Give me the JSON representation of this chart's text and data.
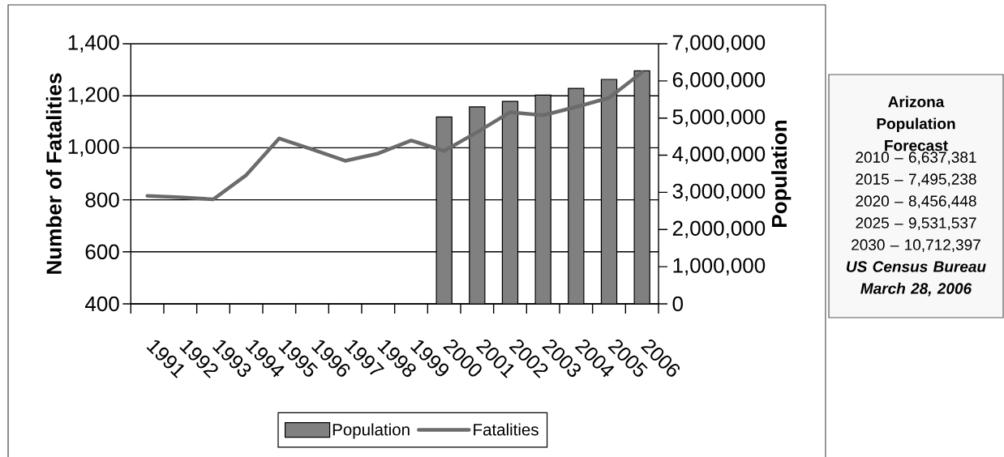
{
  "chart_data": {
    "type": "bar",
    "categories": [
      "1991",
      "1992",
      "1993",
      "1994",
      "1995",
      "1996",
      "1997",
      "1998",
      "1999",
      "2000",
      "2001",
      "2002",
      "2003",
      "2004",
      "2005",
      "2006"
    ],
    "series": [
      {
        "name": "Population",
        "axis": "y2",
        "color": "#808080",
        "values": [
          null,
          null,
          null,
          null,
          null,
          null,
          null,
          null,
          null,
          5030000,
          5300000,
          5450000,
          5620000,
          5800000,
          6040000,
          6270000
        ]
      },
      {
        "name": "Fatalities",
        "type": "line",
        "color": "#6b6b6b",
        "values": [
          815,
          810,
          802,
          895,
          1036,
          994,
          950,
          978,
          1028,
          988,
          1060,
          1137,
          1125,
          1157,
          1192,
          1290
        ]
      }
    ],
    "ylabel": "Number of Fatalities",
    "y2label": "Population",
    "ylim": [
      400,
      1400
    ],
    "yticks": [
      400,
      600,
      800,
      {
        "value": 1000,
        "label": "1,000"
      },
      {
        "value": 1200,
        "label": "1,200"
      },
      {
        "value": 1400,
        "label": "1,400"
      }
    ],
    "y2lim": [
      0,
      7000000
    ],
    "y2ticks": [
      0,
      {
        "value": 1000000,
        "label": "1,000,000"
      },
      {
        "value": 2000000,
        "label": "2,000,000"
      },
      {
        "value": 3000000,
        "label": "3,000,000"
      },
      {
        "value": 4000000,
        "label": "4,000,000"
      },
      {
        "value": 5000000,
        "label": "5,000,000"
      },
      {
        "value": 6000000,
        "label": "6,000,000"
      },
      {
        "value": 7000000,
        "label": "7,000,000"
      }
    ],
    "grid": "y",
    "legend": "bottom",
    "annotations": [
      "Arizona Population Forecast",
      "2010 – 6,637,381",
      "2015 – 7,495,238",
      "2020 – 8,456,448",
      "2025 – 9,531,537",
      "2030 – 10,712,397",
      "US Census Bureau March 28, 2006"
    ]
  }
}
